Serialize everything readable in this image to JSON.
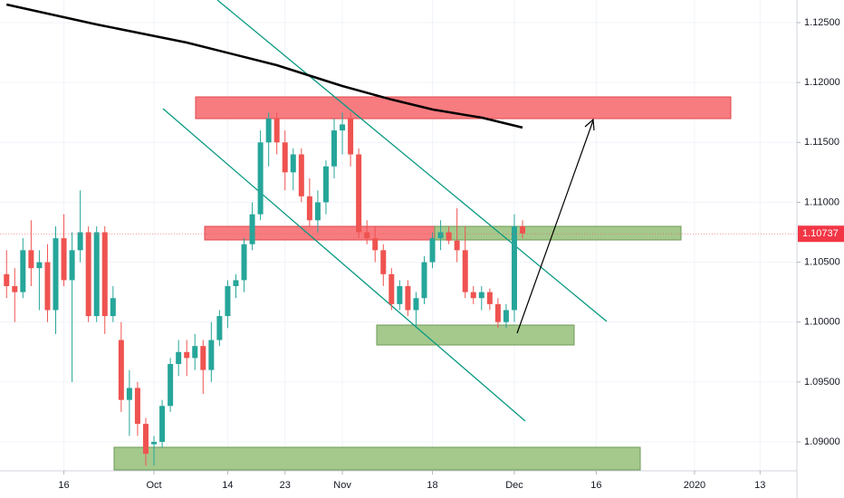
{
  "chart_data": {
    "type": "candlestick",
    "up_color": "#26a69a",
    "down_color": "#ef5350",
    "grid": true,
    "xlim": [
      -18.8,
      78.5
    ],
    "ylim": [
      1.08758,
      1.12689
    ],
    "yticks": [
      {
        "value": 1.125,
        "label": "1.12500"
      },
      {
        "value": 1.12,
        "label": "1.12000"
      },
      {
        "value": 1.115,
        "label": "1.11500"
      },
      {
        "value": 1.11,
        "label": "1.11000"
      },
      {
        "value": 1.105,
        "label": "1.10500"
      },
      {
        "value": 1.1,
        "label": "1.10000"
      },
      {
        "value": 1.095,
        "label": "1.09500"
      },
      {
        "value": 1.09,
        "label": "1.09000"
      }
    ],
    "xticks": [
      {
        "value": -11,
        "label": "16"
      },
      {
        "value": 0,
        "label": "Oct"
      },
      {
        "value": 9,
        "label": "14"
      },
      {
        "value": 16,
        "label": "23"
      },
      {
        "value": 23,
        "label": "Nov"
      },
      {
        "value": 34,
        "label": "18"
      },
      {
        "value": 44,
        "label": "Dec"
      },
      {
        "value": 54,
        "label": "16"
      },
      {
        "value": 66,
        "label": "2020"
      },
      {
        "value": 74,
        "label": "13"
      }
    ],
    "last_price": 1.10737,
    "candles": {
      "x": [
        -18,
        -17,
        -16,
        -15,
        -14,
        -13,
        -12,
        -11,
        -10,
        -9,
        -8,
        -7,
        -6,
        -5,
        -4,
        -3,
        -2,
        -1,
        0,
        1,
        2,
        3,
        4,
        5,
        6,
        7,
        8,
        9,
        10,
        11,
        12,
        13,
        14,
        15,
        16,
        17,
        18,
        19,
        20,
        21,
        22,
        23,
        24,
        25,
        26,
        27,
        28,
        29,
        30,
        31,
        32,
        33,
        34,
        35,
        36,
        37,
        38,
        39,
        40,
        41,
        42,
        43,
        44,
        45
      ],
      "open": [
        1.104,
        1.103,
        1.1025,
        1.106,
        1.1045,
        1.105,
        1.101,
        1.107,
        1.1035,
        1.106,
        1.1075,
        1.1005,
        1.1075,
        1.1005,
        1.0985,
        1.0935,
        1.0945,
        1.0915,
        1.0898,
        1.09,
        1.093,
        1.0965,
        1.0975,
        1.097,
        1.098,
        1.096,
        1.0985,
        1.1005,
        1.103,
        1.1035,
        1.1065,
        1.109,
        1.115,
        1.117,
        1.115,
        1.1125,
        1.114,
        1.1105,
        1.1085,
        1.11,
        1.113,
        1.116,
        1.117,
        1.114,
        1.1075,
        1.107,
        1.106,
        1.104,
        1.1015,
        1.103,
        1.101,
        1.102,
        1.105,
        1.107,
        1.1075,
        1.1068,
        1.106,
        1.1025,
        1.102,
        1.1025,
        1.1015,
        1.1,
        1.101,
        1.108
      ],
      "high": [
        1.106,
        1.1045,
        1.107,
        1.1085,
        1.106,
        1.1065,
        1.108,
        1.109,
        1.1075,
        1.111,
        1.108,
        1.108,
        1.108,
        1.103,
        1.1,
        1.096,
        1.095,
        1.092,
        1.0905,
        1.0935,
        1.097,
        1.0985,
        1.0985,
        1.099,
        1.0985,
        1.1,
        1.101,
        1.1035,
        1.104,
        1.107,
        1.11,
        1.116,
        1.1175,
        1.1175,
        1.116,
        1.1145,
        1.1145,
        1.112,
        1.111,
        1.1135,
        1.117,
        1.1175,
        1.1175,
        1.1145,
        1.1085,
        1.108,
        1.1065,
        1.1045,
        1.1035,
        1.1035,
        1.1025,
        1.1055,
        1.1075,
        1.1085,
        1.108,
        1.1095,
        1.108,
        1.103,
        1.103,
        1.1028,
        1.102,
        1.1015,
        1.109,
        1.1085
      ],
      "low": [
        1.102,
        1.1,
        1.102,
        1.103,
        1.101,
        1.1,
        1.099,
        1.103,
        1.095,
        1.105,
        1.1,
        1.1,
        1.099,
        1.1,
        1.0925,
        1.0905,
        1.0905,
        1.088,
        1.088,
        1.0895,
        1.0925,
        1.0955,
        1.0955,
        1.096,
        1.094,
        1.095,
        1.098,
        1.0995,
        1.102,
        1.1025,
        1.106,
        1.1085,
        1.113,
        1.114,
        1.111,
        1.111,
        1.11,
        1.108,
        1.1075,
        1.109,
        1.112,
        1.114,
        1.113,
        1.107,
        1.1065,
        1.105,
        1.103,
        1.101,
        1.101,
        1.1005,
        1.0995,
        1.1015,
        1.1045,
        1.106,
        1.1065,
        1.105,
        1.102,
        1.1015,
        1.101,
        1.101,
        1.0995,
        1.0995,
        1.1,
        1.107
      ],
      "close": [
        1.103,
        1.1025,
        1.106,
        1.1045,
        1.105,
        1.101,
        1.107,
        1.1035,
        1.106,
        1.1075,
        1.1005,
        1.1075,
        1.1005,
        1.102,
        1.0935,
        1.0945,
        1.0915,
        1.089,
        1.09,
        1.093,
        1.0965,
        1.0975,
        1.097,
        1.098,
        1.096,
        1.0985,
        1.1005,
        1.103,
        1.1035,
        1.1065,
        1.109,
        1.115,
        1.117,
        1.115,
        1.1125,
        1.114,
        1.1105,
        1.1085,
        1.11,
        1.113,
        1.116,
        1.1165,
        1.114,
        1.1075,
        1.107,
        1.106,
        1.104,
        1.1015,
        1.103,
        1.101,
        1.102,
        1.105,
        1.107,
        1.1075,
        1.1068,
        1.106,
        1.1025,
        1.102,
        1.1025,
        1.1015,
        1.1,
        1.101,
        1.108,
        1.1074
      ]
    },
    "ma": {
      "color": "#000000",
      "x": [
        -18,
        -7,
        4,
        15,
        23,
        29,
        34,
        40,
        45
      ],
      "values": [
        1.12651,
        1.12485,
        1.12334,
        1.12145,
        1.11971,
        1.11858,
        1.11775,
        1.11707,
        1.11624
      ]
    }
  }
}
